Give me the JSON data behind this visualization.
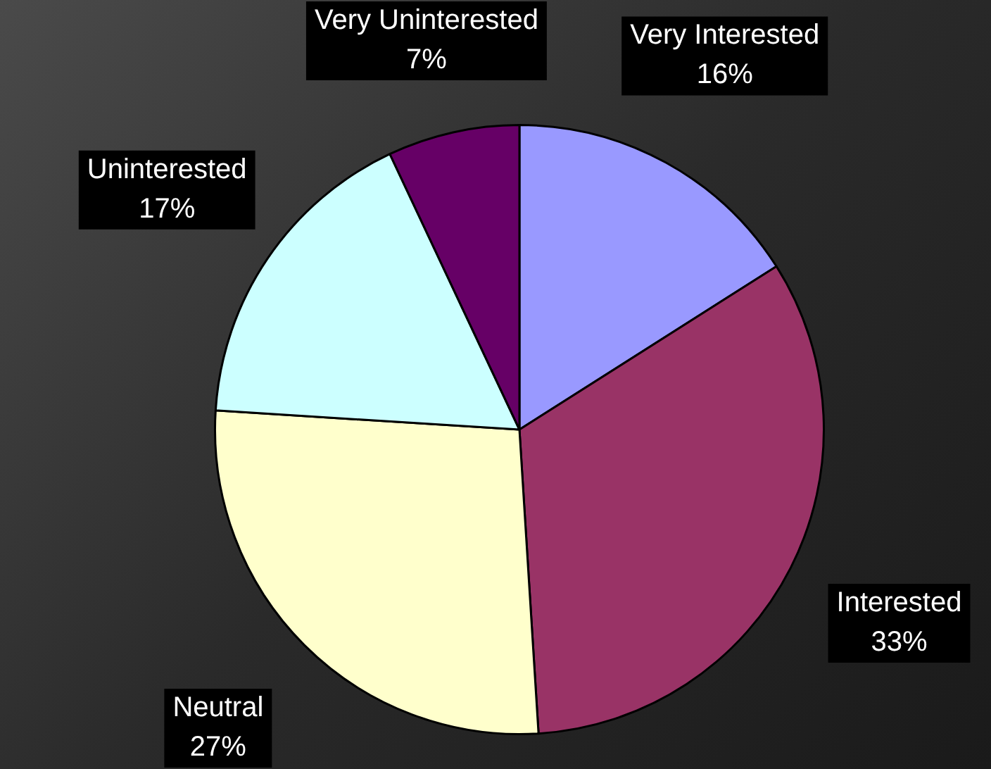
{
  "chart_data": {
    "type": "pie",
    "categories": [
      "Very Interested",
      "Interested",
      "Neutral",
      "Uninterested",
      "Very Uninterested"
    ],
    "values": [
      16,
      33,
      27,
      17,
      7
    ],
    "colors": [
      "#9999ff",
      "#993366",
      "#ffffcc",
      "#ccffff",
      "#660066"
    ],
    "value_labels": [
      "16%",
      "33%",
      "27%",
      "17%",
      "7%"
    ],
    "legend": false
  }
}
